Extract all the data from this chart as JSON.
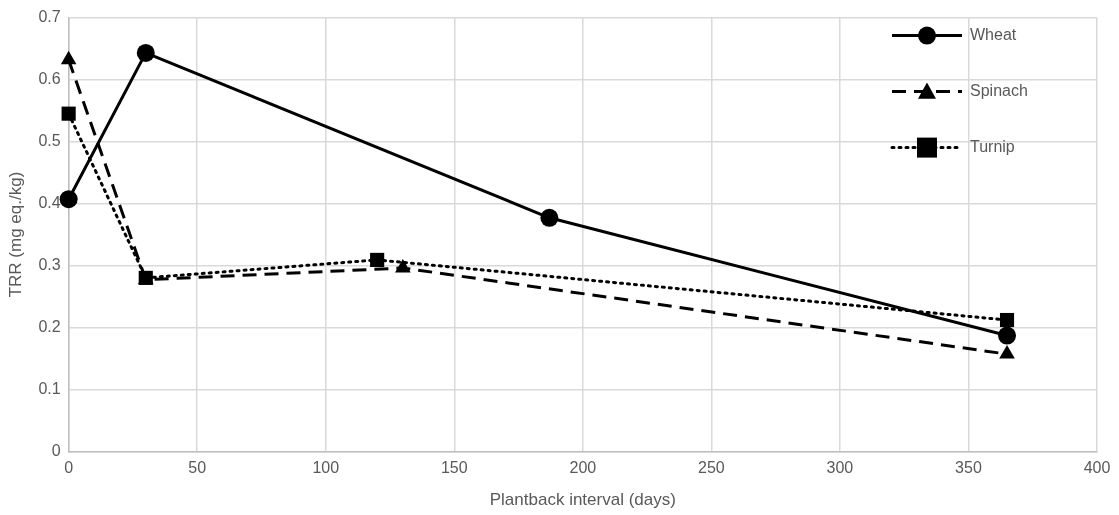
{
  "chart_data": {
    "type": "line",
    "xlabel": "Plantback interval (days)",
    "ylabel": "TRR (mg eq./kg)",
    "xlim": [
      0,
      400
    ],
    "xticks": [
      0,
      50,
      100,
      150,
      200,
      250,
      300,
      350,
      400
    ],
    "ylim": [
      0,
      0.7
    ],
    "yticks": [
      0,
      0.1,
      0.2,
      0.3,
      0.4,
      0.5,
      0.6,
      0.7
    ],
    "grid": true,
    "legend": "top right",
    "series": [
      {
        "name": "Wheat",
        "color": "#000000",
        "x": [
          0,
          30,
          187,
          365
        ],
        "values": [
          0.407,
          0.643,
          0.377,
          0.187
        ],
        "marker": "circle",
        "line_style": "solid"
      },
      {
        "name": "Spinach",
        "color": "#000000",
        "x": [
          0,
          30,
          130,
          365
        ],
        "values": [
          0.632,
          0.277,
          0.296,
          0.157
        ],
        "marker": "triangle",
        "line_style": "dashed"
      },
      {
        "name": "Turnip",
        "color": "#000000",
        "x": [
          0,
          30,
          120,
          365
        ],
        "values": [
          0.545,
          0.28,
          0.309,
          0.212
        ],
        "marker": "square",
        "line_style": "dotted"
      }
    ]
  }
}
